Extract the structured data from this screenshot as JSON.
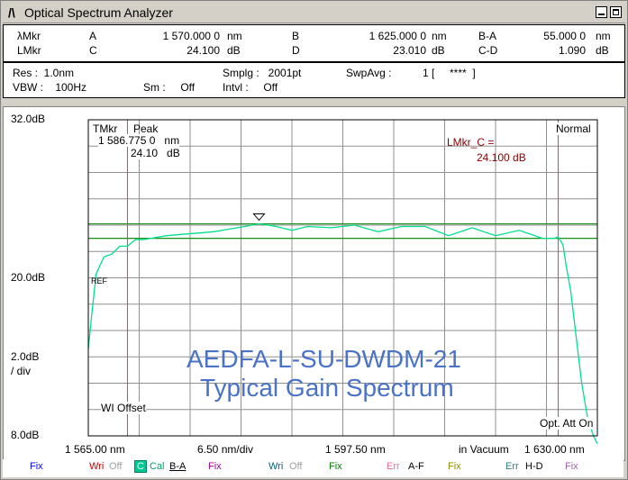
{
  "window": {
    "logo": "/\\",
    "title": "Optical Spectrum Analyzer"
  },
  "markers": {
    "row1": {
      "lmkr_label": "λMkr",
      "a_label": "A",
      "a_value": "1 570.000 0",
      "a_unit": "nm",
      "b_label": "B",
      "b_value": "1 625.000 0",
      "b_unit": "nm",
      "ba_label": "B-A",
      "ba_value": "55.000 0",
      "ba_unit": "nm"
    },
    "row2": {
      "lmkr_label": "LMkr",
      "c_label": "C",
      "c_value": "24.100",
      "c_unit": "dB",
      "d_label": "D",
      "d_value": "23.010",
      "d_unit": "dB",
      "cd_label": "C-D",
      "cd_value": "1.090",
      "cd_unit": "dB"
    }
  },
  "settings": {
    "res": "Res :  1.0nm",
    "smplg": "Smplg :   2001pt",
    "swpavg_label": "SwpAvg :",
    "swpavg_value": "1 [     ****  ]",
    "vbw": "VBW :    100Hz",
    "sm": "Sm :     Off",
    "intvl": "Intvl :     Off"
  },
  "plot": {
    "y_top": "32.0dB",
    "y_mid": "20.0dB",
    "y_scale": "2.0dB",
    "y_scale_unit": "/ div",
    "y_bottom": "8.0dB",
    "tmkr": "TMkr",
    "peak": "Peak",
    "peak_wl": "1 586.775 0   nm",
    "peak_val": "24.10   dB",
    "lmkr_c_label": "LMkr_C =",
    "lmkr_c_value": "24.100 dB",
    "mode": "Normal",
    "ref": "REF",
    "wl_offset": "WI Offset",
    "opt_att": "Opt. Att On",
    "overlay_line1": "AEDFA-L-SU-DWDM-21",
    "overlay_line2": "Typical Gain Spectrum",
    "x_left": "1 565.00 nm",
    "x_scale": "6.50 nm/div",
    "x_center": "1 597.50 nm",
    "medium": "in Vacuum",
    "x_right": "1 630.00 nm"
  },
  "colors": {
    "trace": "#00e08a",
    "marker_red": "#ff3030",
    "level_green": "#1a8c1a",
    "overlay_blue": "#4a73c8",
    "dark_red": "#8b0000"
  },
  "chart_data": {
    "type": "line",
    "xlabel": "",
    "ylabel": "",
    "xlim": [
      1565.0,
      1630.0
    ],
    "ylim": [
      8.0,
      32.0
    ],
    "series": [
      {
        "x": [
          1565.0,
          1565.4,
          1566.0,
          1567.0,
          1568.0,
          1569.0,
          1570.0,
          1571.0,
          1572.0,
          1573.0,
          1575.0,
          1577.0,
          1579.0,
          1581.0,
          1583.0,
          1585.0,
          1586.8,
          1589.0,
          1591.0,
          1593.0,
          1596.0,
          1599.0,
          1602.0,
          1605.0,
          1608.0,
          1611.0,
          1614.0,
          1617.0,
          1620.0,
          1623.0,
          1624.5,
          1625.0,
          1625.6,
          1626.0,
          1626.6,
          1627.3,
          1628.0,
          1628.8,
          1629.5,
          1630.0
        ],
        "y": [
          14.6,
          17.0,
          20.3,
          21.6,
          21.8,
          22.4,
          22.4,
          22.9,
          22.9,
          23.0,
          23.2,
          23.3,
          23.4,
          23.5,
          23.7,
          23.9,
          24.1,
          23.9,
          23.6,
          23.9,
          23.8,
          24.0,
          23.5,
          23.9,
          23.9,
          23.2,
          23.8,
          23.2,
          23.6,
          23.0,
          23.0,
          23.1,
          22.5,
          21.0,
          19.0,
          15.5,
          12.0,
          9.2,
          8.0,
          7.4
        ]
      }
    ],
    "reference_lines_db": [
      24.1,
      23.0
    ],
    "marker_wavelengths_nm": [
      1570.0,
      1625.0
    ]
  },
  "bottom": {
    "fix1": "Fix",
    "wri1": "Wri",
    "off1": "Off",
    "c": "C",
    "cal": "Cal",
    "ba": "B-A",
    "fix2": "Fix",
    "wri2": "Wri",
    "off2": "Off",
    "fix3": "Fix",
    "err1": "Err",
    "af": "A-F",
    "fix4": "Fix",
    "err2": "Err",
    "hd": "H-D",
    "fix5": "Fix"
  }
}
